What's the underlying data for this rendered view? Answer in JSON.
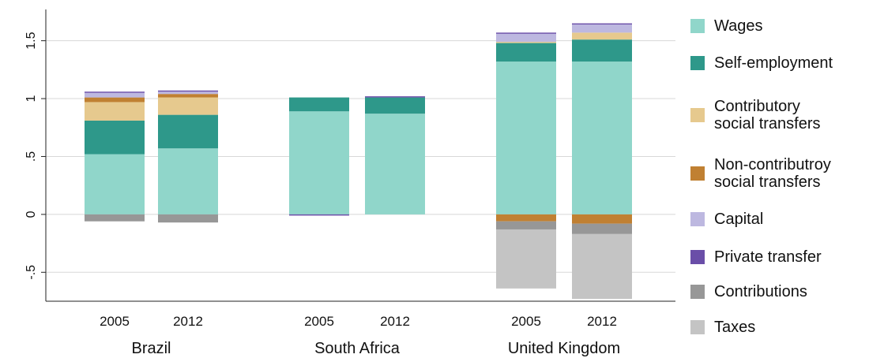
{
  "chart_data": {
    "type": "bar",
    "stacked": true,
    "groups": [
      {
        "label": "Brazil",
        "bars": [
          "2005",
          "2012"
        ]
      },
      {
        "label": "South Africa",
        "bars": [
          "2005",
          "2012"
        ]
      },
      {
        "label": "United Kingdom",
        "bars": [
          "2005",
          "2012"
        ]
      }
    ],
    "categories": [
      "Brazil 2005",
      "Brazil 2012",
      "South Africa 2005",
      "South Africa 2012",
      "United Kingdom 2005",
      "United Kingdom 2012"
    ],
    "series": [
      {
        "name": "Wages",
        "color": "#90d6ca",
        "values": [
          0.52,
          0.57,
          0.89,
          0.87,
          1.32,
          1.32
        ]
      },
      {
        "name": "Self-employment",
        "color": "#2e988a",
        "values": [
          0.29,
          0.29,
          0.12,
          0.14,
          0.16,
          0.19
        ]
      },
      {
        "name": "Contributory social transfers",
        "color": "#e6c98e",
        "values": [
          0.16,
          0.15,
          0.0,
          0.0,
          0.01,
          0.06
        ]
      },
      {
        "name": "Non-contributroy social transfers",
        "color": "#c08032",
        "values": [
          0.04,
          0.03,
          0.0,
          0.0,
          0.0,
          0.0
        ]
      },
      {
        "name": "Capital",
        "color": "#bdb8e0",
        "values": [
          0.04,
          0.02,
          0.0,
          0.0,
          0.07,
          0.07
        ]
      },
      {
        "name": "Private transfer",
        "color": "#6a4ea8",
        "values": [
          0.01,
          0.01,
          -0.01,
          0.01,
          0.01,
          0.01
        ]
      },
      {
        "name": "Contributions",
        "color": "#979797",
        "values": [
          -0.06,
          -0.07,
          0.0,
          0.0,
          -0.07,
          -0.09
        ]
      },
      {
        "name": "Taxes",
        "color": "#c4c4c4",
        "values": [
          0.0,
          0.0,
          0.0,
          0.0,
          -0.51,
          -0.56
        ]
      }
    ],
    "negative_segment_overrides": [
      {
        "series": "Non-contributroy social transfers",
        "values": [
          0.0,
          0.0,
          0.0,
          0.0,
          -0.06,
          -0.08
        ]
      }
    ],
    "yticks": [
      -0.5,
      0,
      0.5,
      1,
      1.5
    ],
    "ytick_labels": [
      "-.5",
      "0",
      ".5",
      "1",
      "1.5"
    ],
    "ylim": [
      -0.75,
      1.77
    ],
    "grid": true,
    "legend_position": "right",
    "title": "",
    "xlabel": "",
    "ylabel": ""
  }
}
